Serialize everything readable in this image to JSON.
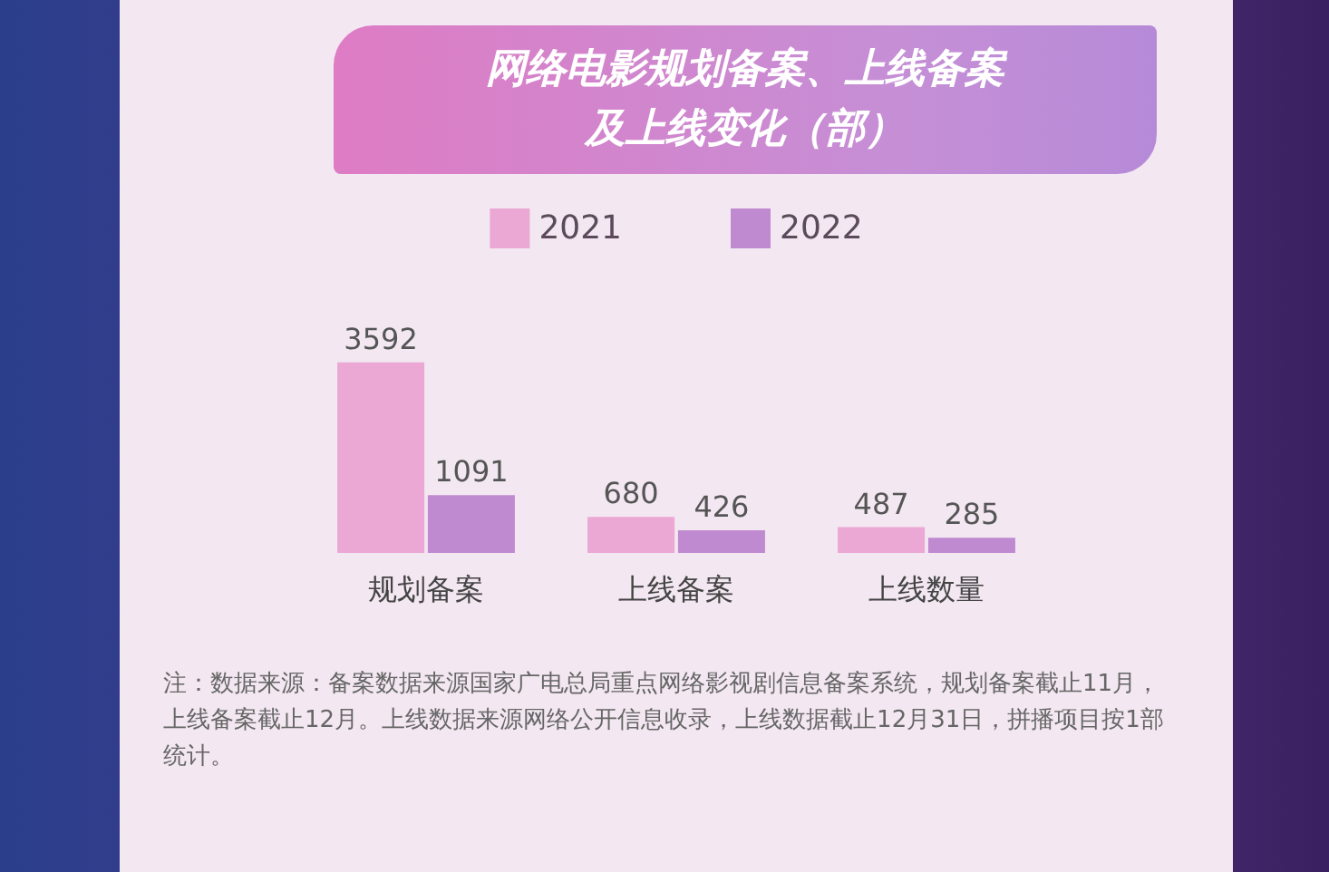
{
  "chart_data": {
    "type": "bar",
    "title": "网络电影规划备案、上线备案及上线变化（部）",
    "categories": [
      "规划备案",
      "上线备案",
      "上线数量"
    ],
    "series": [
      {
        "name": "2021",
        "color": "#eba8d4",
        "values": [
          3592,
          680,
          487
        ]
      },
      {
        "name": "2022",
        "color": "#c08ad0",
        "values": [
          1091,
          426,
          285
        ]
      }
    ],
    "data_labels": true,
    "legend": "top",
    "grid": false,
    "annotations": [
      "注：数据来源：备案数据来源国家广电总局重点网络影视剧信息备案系统，规划备案截止11月，上线备案截止12月。上线数据来源网络公开信息收录，上线数据截止12月31日，拼播项目按1部统计。"
    ]
  }
}
